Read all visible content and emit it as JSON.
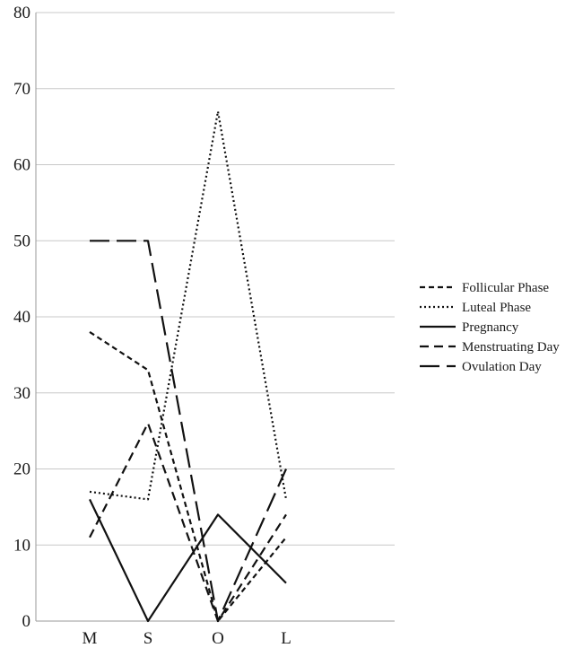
{
  "chart_data": {
    "type": "line",
    "title": "",
    "xlabel": "",
    "ylabel": "",
    "categories": [
      "M",
      "S",
      "O",
      "L"
    ],
    "ylim": [
      0,
      80
    ],
    "yticks": [
      "0",
      "10",
      "20",
      "30",
      "40",
      "50",
      "60",
      "70",
      "80"
    ],
    "grid": true,
    "legend_position": "right",
    "series": [
      {
        "name": "Follicular Phase",
        "values": [
          38,
          33,
          0,
          11
        ],
        "dash": "6,4"
      },
      {
        "name": "Luteal Phase",
        "values": [
          17,
          16,
          67,
          16
        ],
        "dash": "2,3"
      },
      {
        "name": "Pregnancy",
        "values": [
          16,
          0,
          14,
          5
        ],
        "dash": ""
      },
      {
        "name": "Menstruating Day",
        "values": [
          11,
          26,
          0,
          14
        ],
        "dash": "10,6"
      },
      {
        "name": "Ovulation Day",
        "values": [
          50,
          50,
          0,
          20
        ],
        "dash": "22,8"
      }
    ],
    "colors": {
      "line": "#111111",
      "grid": "#c8c8c8",
      "text": "#1a1a1a"
    }
  }
}
